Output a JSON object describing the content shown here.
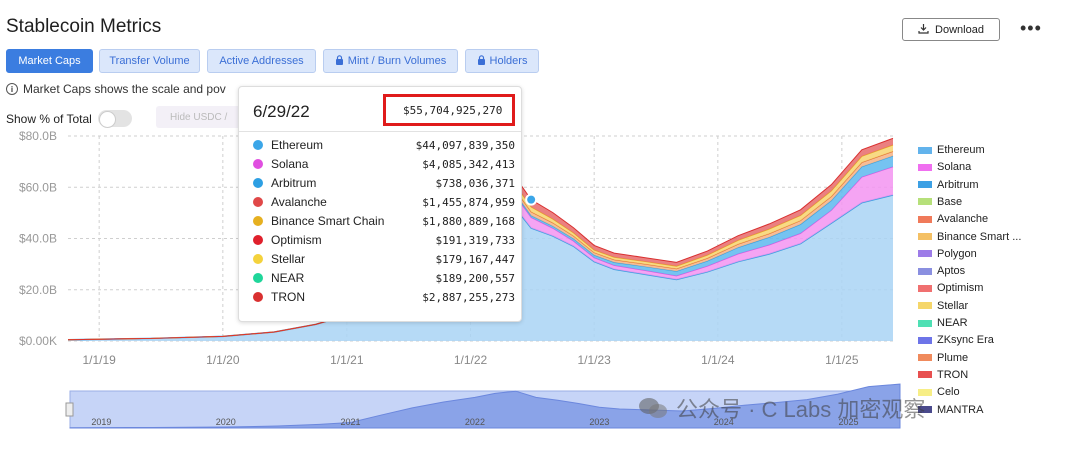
{
  "page": {
    "title": "Stablecoin Metrics"
  },
  "toolbar": {
    "download_label": "Download",
    "more_label": "•••"
  },
  "tabs": [
    {
      "label": "Market Caps",
      "active": true,
      "locked": false
    },
    {
      "label": "Transfer Volume",
      "active": false,
      "locked": false
    },
    {
      "label": "Active Addresses",
      "active": false,
      "locked": false
    },
    {
      "label": "Mint / Burn Volumes",
      "active": false,
      "locked": true
    },
    {
      "label": "Holders",
      "active": false,
      "locked": true
    }
  ],
  "info_text": "Market Caps shows the scale and pov",
  "controls": {
    "show_pct_label": "Show % of Total",
    "hide_label": "Hide USDC /"
  },
  "tooltip": {
    "date": "6/29/22",
    "total": "$55,704,925,270",
    "rows": [
      {
        "name": "Ethereum",
        "value": "$44,097,839,350",
        "color": "#3ba6e8"
      },
      {
        "name": "Solana",
        "value": "$4,085,342,413",
        "color": "#e04fe0"
      },
      {
        "name": "Arbitrum",
        "value": "$738,036,371",
        "color": "#2d9fe3"
      },
      {
        "name": "Avalanche",
        "value": "$1,455,874,959",
        "color": "#e04848"
      },
      {
        "name": "Binance Smart Chain",
        "value": "$1,880,889,168",
        "color": "#e6b020"
      },
      {
        "name": "Optimism",
        "value": "$191,319,733",
        "color": "#e0202c"
      },
      {
        "name": "Stellar",
        "value": "$179,167,447",
        "color": "#f4d23c"
      },
      {
        "name": "NEAR",
        "value": "$189,200,557",
        "color": "#1fd69a"
      },
      {
        "name": "TRON",
        "value": "$2,887,255,273",
        "color": "#d93030"
      }
    ]
  },
  "legend": [
    {
      "name": "Ethereum",
      "color": "#62b3ec"
    },
    {
      "name": "Solana",
      "color": "#f06ff0"
    },
    {
      "name": "Arbitrum",
      "color": "#3ca0e4"
    },
    {
      "name": "Base",
      "color": "#b6e07a"
    },
    {
      "name": "Avalanche",
      "color": "#f07a5a"
    },
    {
      "name": "Binance Smart ...",
      "color": "#f4c064"
    },
    {
      "name": "Polygon",
      "color": "#9d7ce8"
    },
    {
      "name": "Aptos",
      "color": "#8a8fe0"
    },
    {
      "name": "Optimism",
      "color": "#f07070"
    },
    {
      "name": "Stellar",
      "color": "#f5d66a"
    },
    {
      "name": "NEAR",
      "color": "#4fe0b4"
    },
    {
      "name": "ZKsync Era",
      "color": "#6d74e8"
    },
    {
      "name": "Plume",
      "color": "#f08a5c"
    },
    {
      "name": "TRON",
      "color": "#e85050"
    },
    {
      "name": "Celo",
      "color": "#f7ee86"
    },
    {
      "name": "MANTRA",
      "color": "#4a4a8c"
    }
  ],
  "watermark_text": "公众号 · C Labs 加密观察",
  "chart_data": {
    "type": "area",
    "title": "",
    "xlabel": "",
    "ylabel": "",
    "ylim": [
      0,
      80
    ],
    "y_unit": "B",
    "y_ticks": [
      "$0.00K",
      "$20.0B",
      "$40.0B",
      "$60.0B",
      "$80.0B"
    ],
    "x_ticks": [
      "1/1/19",
      "1/1/20",
      "1/1/21",
      "1/1/22",
      "1/1/23",
      "1/1/24",
      "1/1/25"
    ],
    "navigator_ticks": [
      "2019",
      "2020",
      "2021",
      "2022",
      "2023",
      "2024",
      "2025"
    ],
    "grid": true,
    "legend_position": "right",
    "x_range": [
      "2018-10-01",
      "2025-06-01"
    ],
    "x": [
      "2018-10-01",
      "2019-06-01",
      "2020-01-01",
      "2020-06-01",
      "2020-10-01",
      "2021-01-01",
      "2021-04-01",
      "2021-07-01",
      "2021-10-01",
      "2022-01-01",
      "2022-03-01",
      "2022-05-01",
      "2022-06-29",
      "2022-09-01",
      "2022-11-01",
      "2023-01-01",
      "2023-03-01",
      "2023-06-01",
      "2023-09-01",
      "2023-12-01",
      "2024-03-01",
      "2024-06-01",
      "2024-09-01",
      "2024-12-01",
      "2025-03-01",
      "2025-06-01"
    ],
    "series": [
      {
        "name": "Ethereum",
        "values": [
          0.5,
          1.0,
          1.8,
          3.5,
          6.5,
          10.0,
          22.0,
          33.0,
          40.0,
          45.0,
          50.0,
          54.0,
          44.1,
          41.0,
          37.0,
          31.0,
          28.0,
          26.0,
          24.0,
          27.0,
          31.0,
          34.0,
          38.0,
          46.0,
          54.0,
          57.0
        ]
      },
      {
        "name": "Solana",
        "values": [
          0,
          0,
          0,
          0,
          0,
          0,
          0.3,
          1.0,
          2.5,
          4.0,
          5.0,
          5.0,
          4.1,
          3.0,
          2.0,
          1.5,
          1.5,
          1.5,
          1.4,
          2.2,
          3.0,
          3.5,
          4.0,
          5.0,
          10.0,
          11.0
        ]
      },
      {
        "name": "Arbitrum",
        "values": [
          0,
          0,
          0,
          0,
          0,
          0,
          0,
          0,
          0.2,
          0.4,
          0.6,
          0.7,
          0.74,
          0.8,
          0.9,
          1.0,
          1.2,
          1.5,
          1.8,
          2.0,
          2.5,
          3.0,
          3.5,
          3.8,
          4.0,
          4.2
        ]
      },
      {
        "name": "Avalanche",
        "values": [
          0,
          0,
          0,
          0,
          0,
          0,
          0,
          0.3,
          0.8,
          1.3,
          1.5,
          1.6,
          1.46,
          1.3,
          1.1,
          1.0,
          1.0,
          1.0,
          1.0,
          1.1,
          1.3,
          1.4,
          1.5,
          1.6,
          1.7,
          1.8
        ]
      },
      {
        "name": "Binance Smart Chain",
        "values": [
          0,
          0,
          0,
          0,
          0,
          0,
          0.5,
          1.0,
          1.5,
          2.0,
          2.2,
          2.0,
          1.88,
          1.5,
          1.2,
          1.0,
          1.0,
          1.0,
          1.0,
          1.2,
          1.5,
          1.8,
          2.0,
          2.2,
          2.4,
          2.5
        ]
      },
      {
        "name": "TRON",
        "values": [
          0,
          0,
          0,
          0,
          0,
          0,
          0.5,
          1.0,
          1.8,
          2.5,
          3.0,
          3.0,
          2.89,
          2.5,
          2.0,
          1.8,
          1.6,
          1.5,
          1.5,
          1.6,
          1.8,
          2.0,
          2.2,
          2.4,
          2.5,
          2.6
        ]
      }
    ]
  }
}
